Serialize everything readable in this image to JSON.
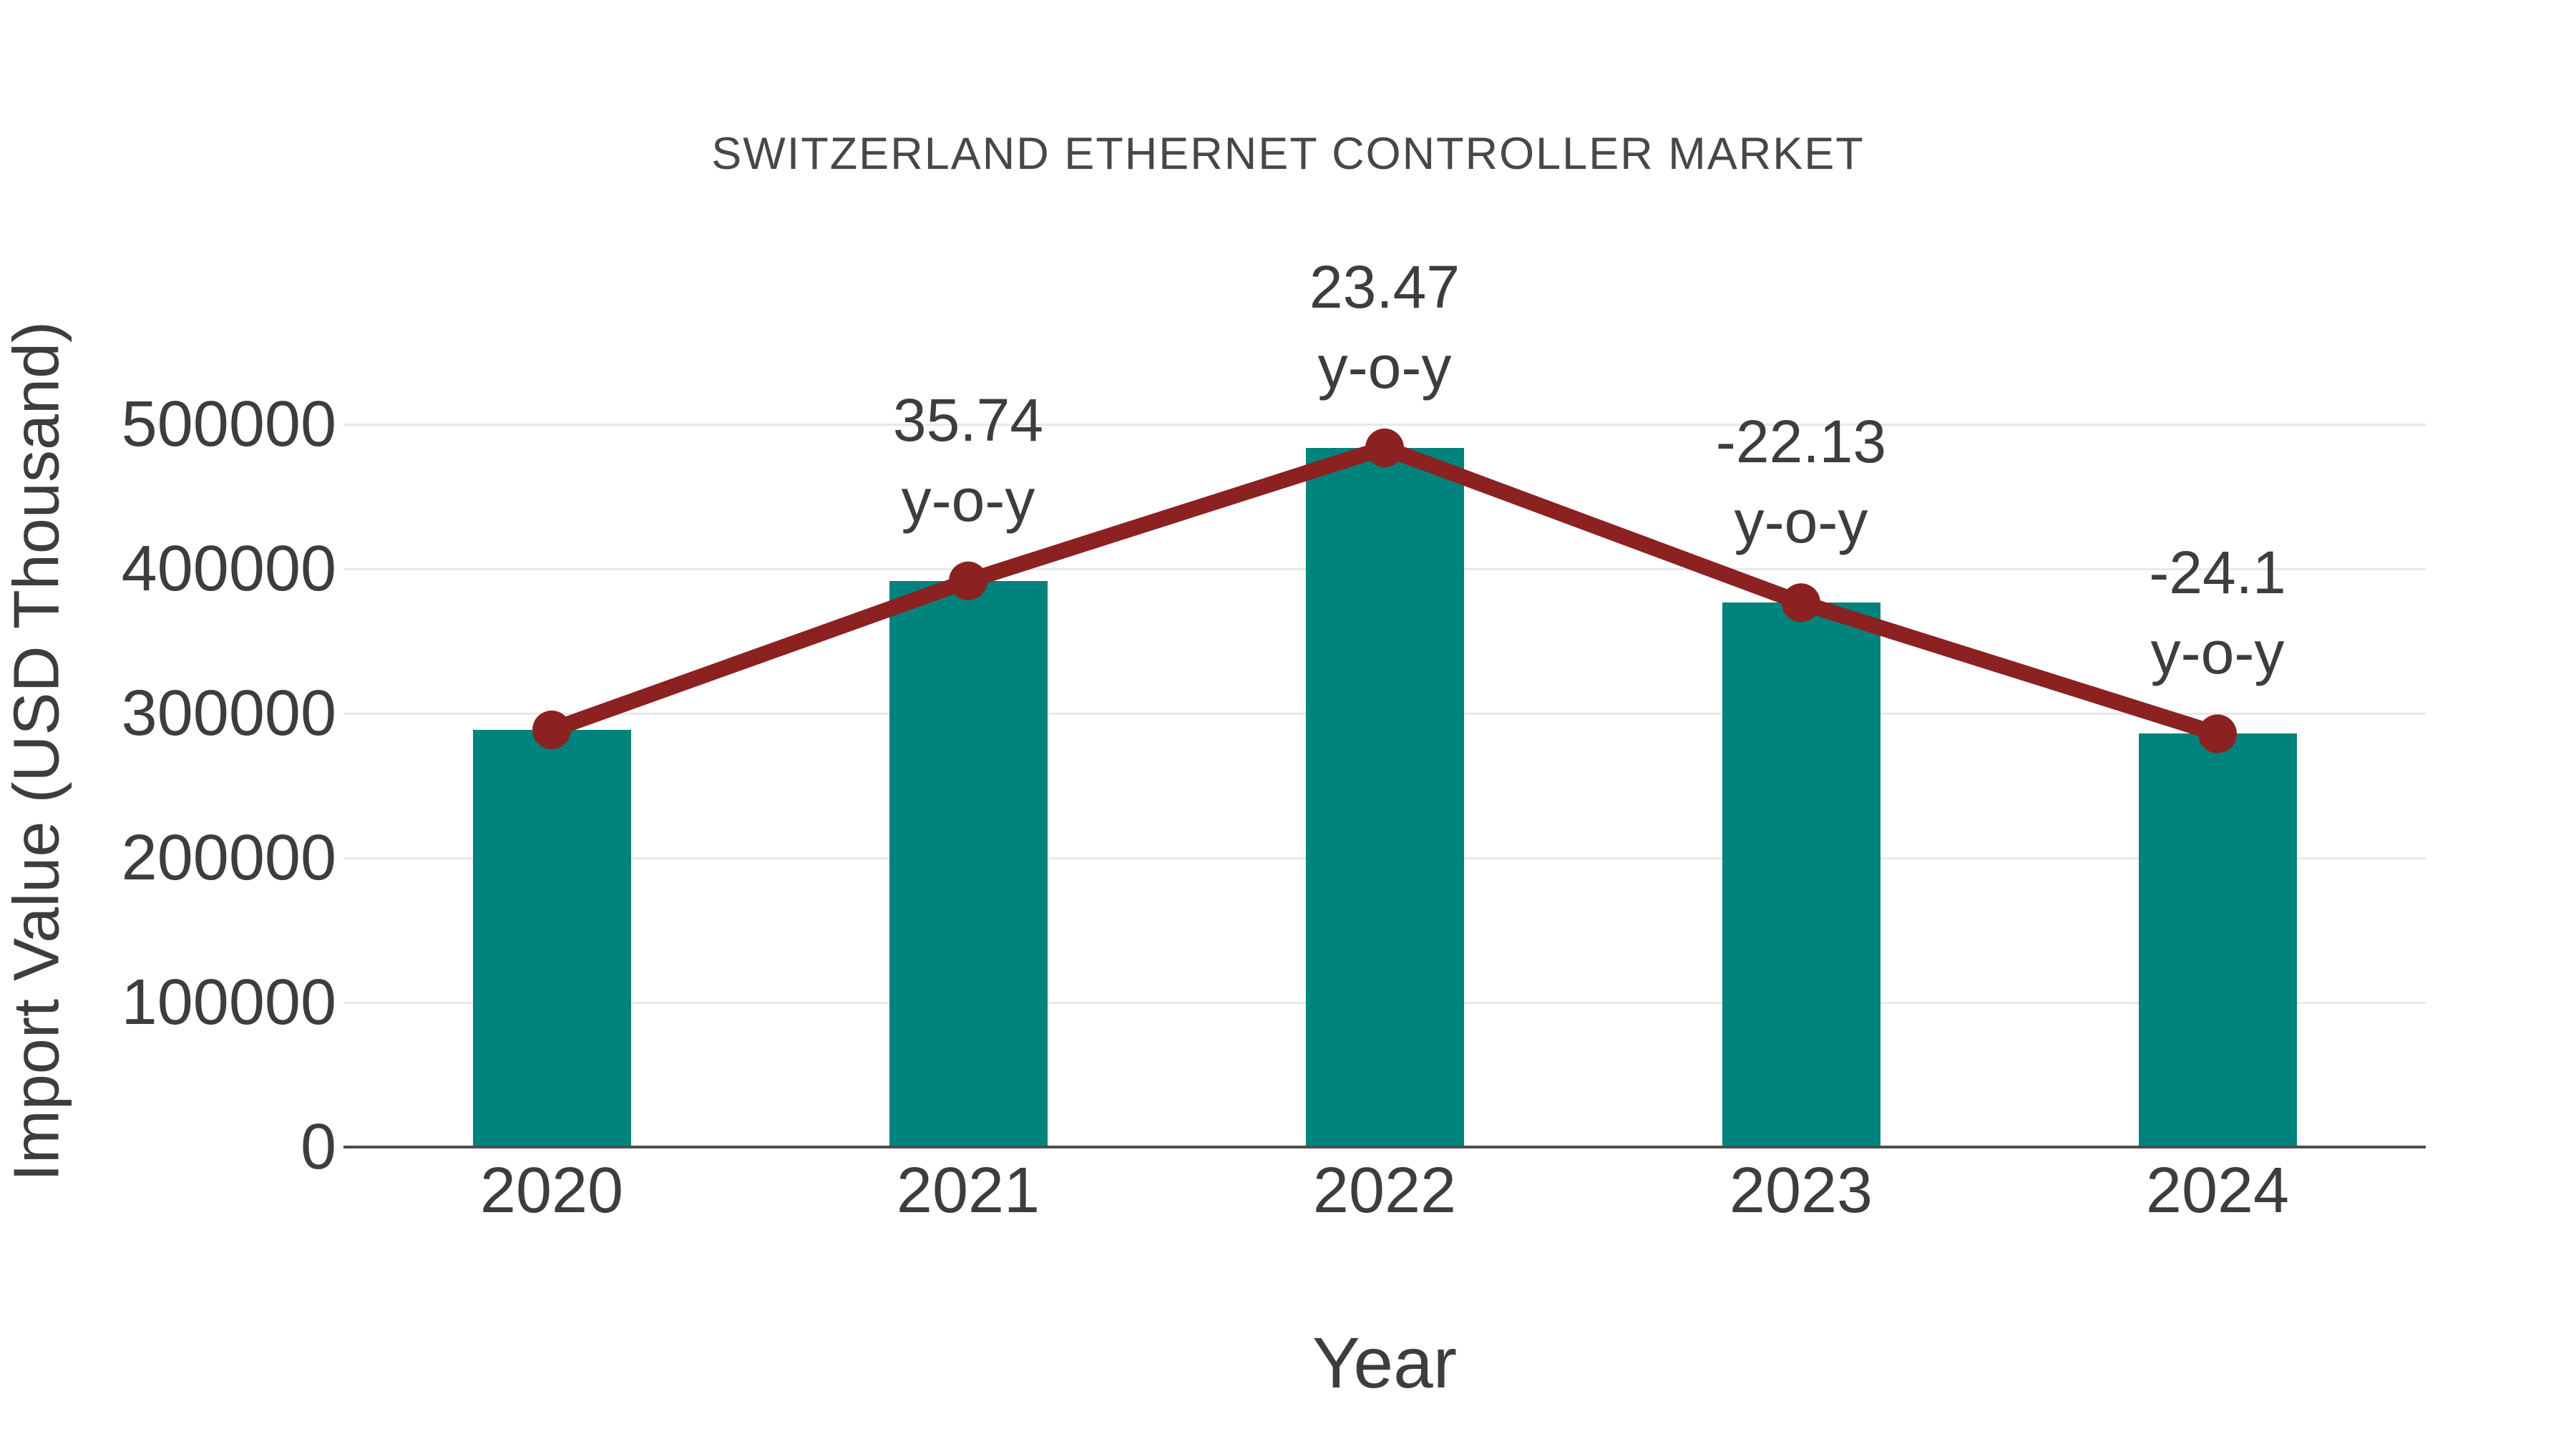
{
  "chart_data": {
    "type": "bar",
    "title": "SWITZERLAND ETHERNET CONTROLLER MARKET",
    "xlabel": "Year",
    "ylabel": "Import Value (USD Thousand)",
    "categories": [
      "2020",
      "2021",
      "2022",
      "2023",
      "2024"
    ],
    "series": [
      {
        "name": "Import Value (USD Thousand)",
        "type": "bar",
        "values": [
          288600,
          391700,
          483700,
          376600,
          285900
        ]
      },
      {
        "name": "y-o-y change (%)",
        "type": "line",
        "values": [
          null,
          35.74,
          23.47,
          -22.13,
          -24.1
        ]
      }
    ],
    "annotations": [
      {
        "category": "2021",
        "line1": "35.74",
        "line2": "y-o-y"
      },
      {
        "category": "2022",
        "line1": "23.47",
        "line2": "y-o-y"
      },
      {
        "category": "2023",
        "line1": "-22.13",
        "line2": "y-o-y"
      },
      {
        "category": "2024",
        "line1": "-24.1",
        "line2": "y-o-y"
      }
    ],
    "y_ticks": [
      "0",
      "100000",
      "200000",
      "300000",
      "400000",
      "500000"
    ],
    "y_tick_values": [
      0,
      100000,
      200000,
      300000,
      400000,
      500000
    ],
    "ylim": [
      0,
      500000
    ],
    "grid": true,
    "legend_position": "none"
  },
  "colors": {
    "bar": "#00827D",
    "line": "#8B2121",
    "marker": "#8B2121",
    "text": "#3D3D3D",
    "grid": "#E9E9E9",
    "axis": "#4D4D4D",
    "background": "#FFFFFF"
  }
}
